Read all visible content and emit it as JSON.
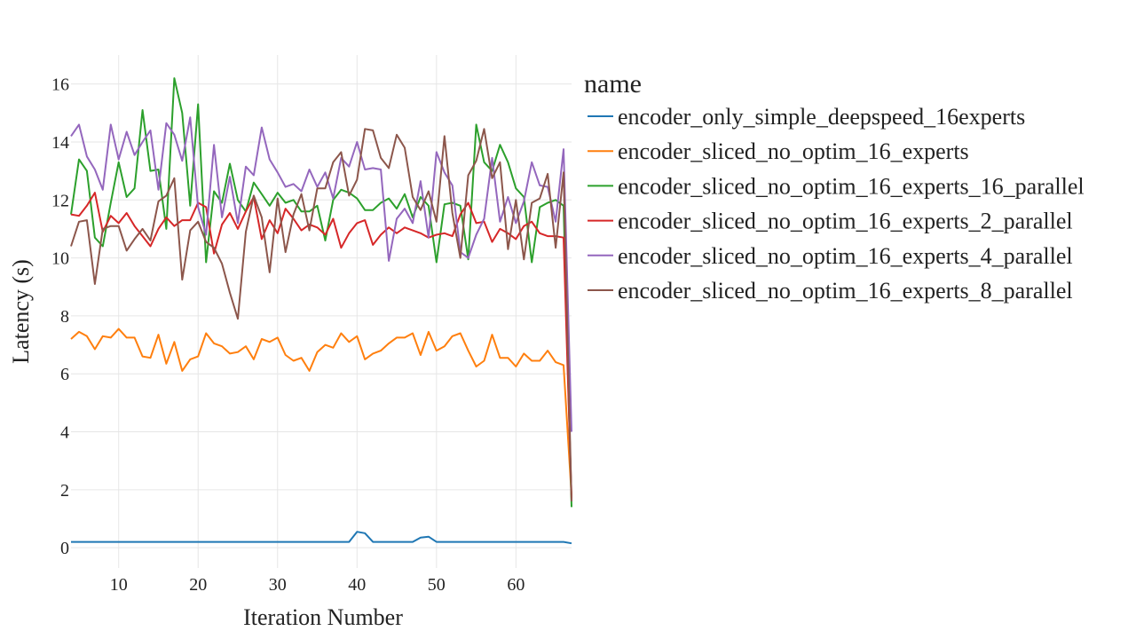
{
  "chart_data": {
    "type": "line",
    "xlabel": "Iteration Number",
    "ylabel": "Latency (s)",
    "xlim": [
      4,
      67
    ],
    "ylim": [
      -0.7,
      17.0
    ],
    "xticks": [
      10,
      20,
      30,
      40,
      50,
      60
    ],
    "yticks": [
      0,
      2,
      4,
      6,
      8,
      10,
      12,
      14,
      16
    ],
    "grid": true,
    "legend": {
      "title": "name",
      "placement": "right"
    },
    "x": [
      4,
      5,
      6,
      7,
      8,
      9,
      10,
      11,
      12,
      13,
      14,
      15,
      16,
      17,
      18,
      19,
      20,
      21,
      22,
      23,
      24,
      25,
      26,
      27,
      28,
      29,
      30,
      31,
      32,
      33,
      34,
      35,
      36,
      37,
      38,
      39,
      40,
      41,
      42,
      43,
      44,
      45,
      46,
      47,
      48,
      49,
      50,
      51,
      52,
      53,
      54,
      55,
      56,
      57,
      58,
      59,
      60,
      61,
      62,
      63,
      64,
      65,
      66,
      67
    ],
    "series": [
      {
        "name": "encoder_only_simple_deepspeed_16experts",
        "color": "#1f77b4",
        "values": [
          0.2,
          0.2,
          0.2,
          0.2,
          0.2,
          0.2,
          0.2,
          0.2,
          0.2,
          0.2,
          0.2,
          0.2,
          0.2,
          0.2,
          0.2,
          0.2,
          0.2,
          0.2,
          0.2,
          0.2,
          0.2,
          0.2,
          0.2,
          0.2,
          0.2,
          0.2,
          0.2,
          0.2,
          0.2,
          0.2,
          0.2,
          0.2,
          0.2,
          0.2,
          0.2,
          0.2,
          0.55,
          0.5,
          0.2,
          0.2,
          0.2,
          0.2,
          0.2,
          0.2,
          0.35,
          0.38,
          0.2,
          0.2,
          0.2,
          0.2,
          0.2,
          0.2,
          0.2,
          0.2,
          0.2,
          0.2,
          0.2,
          0.2,
          0.2,
          0.2,
          0.2,
          0.2,
          0.2,
          0.15
        ]
      },
      {
        "name": "encoder_sliced_no_optim_16_experts",
        "color": "#ff7f0e",
        "values": [
          7.2,
          7.45,
          7.3,
          6.85,
          7.3,
          7.25,
          7.55,
          7.25,
          7.25,
          6.6,
          6.55,
          7.35,
          6.35,
          7.1,
          6.1,
          6.5,
          6.6,
          7.4,
          7.05,
          6.95,
          6.7,
          6.75,
          6.95,
          6.5,
          7.2,
          7.1,
          7.25,
          6.65,
          6.45,
          6.55,
          6.1,
          6.75,
          7.0,
          6.9,
          7.4,
          7.1,
          7.3,
          6.5,
          6.7,
          6.8,
          7.05,
          7.25,
          7.25,
          7.4,
          6.65,
          7.45,
          6.8,
          6.95,
          7.3,
          7.4,
          6.8,
          6.25,
          6.45,
          7.35,
          6.55,
          6.55,
          6.25,
          6.7,
          6.45,
          6.45,
          6.8,
          6.4,
          6.3,
          1.8
        ]
      },
      {
        "name": "encoder_sliced_no_optim_16_experts_16_parallel",
        "color": "#2ca02c",
        "values": [
          11.5,
          13.4,
          13.0,
          10.7,
          10.4,
          11.9,
          13.3,
          12.1,
          12.4,
          15.1,
          13.0,
          13.05,
          11.0,
          16.2,
          15.0,
          11.8,
          15.3,
          9.85,
          12.3,
          11.9,
          13.25,
          12.0,
          11.6,
          12.6,
          12.2,
          11.8,
          12.25,
          11.9,
          12.0,
          11.6,
          11.6,
          11.8,
          10.6,
          12.0,
          12.35,
          12.25,
          12.05,
          11.65,
          11.65,
          11.9,
          12.05,
          11.7,
          12.2,
          11.4,
          12.1,
          11.8,
          9.85,
          11.85,
          11.9,
          11.8,
          9.95,
          14.6,
          13.3,
          13.0,
          13.9,
          13.3,
          12.4,
          12.1,
          9.85,
          11.75,
          11.9,
          12.0,
          11.8,
          1.4
        ]
      },
      {
        "name": "encoder_sliced_no_optim_16_experts_2_parallel",
        "color": "#d62728",
        "values": [
          11.5,
          11.45,
          11.8,
          12.25,
          10.9,
          11.45,
          11.2,
          11.55,
          11.1,
          10.75,
          10.4,
          11.0,
          11.4,
          11.1,
          11.3,
          11.3,
          11.9,
          11.75,
          10.15,
          11.15,
          11.55,
          11.0,
          11.6,
          12.1,
          10.65,
          11.3,
          10.85,
          11.7,
          11.35,
          10.95,
          11.15,
          11.05,
          10.8,
          11.35,
          10.35,
          10.85,
          11.2,
          11.3,
          10.45,
          10.8,
          11.05,
          10.85,
          11.05,
          10.95,
          10.85,
          10.7,
          10.8,
          10.85,
          10.75,
          11.5,
          11.9,
          11.2,
          11.25,
          10.55,
          11.0,
          10.85,
          10.65,
          11.1,
          11.25,
          10.85,
          10.75,
          10.75,
          10.7,
          1.7
        ]
      },
      {
        "name": "encoder_sliced_no_optim_16_experts_4_parallel",
        "color": "#9467bd",
        "values": [
          14.2,
          14.6,
          13.5,
          13.05,
          12.35,
          14.6,
          13.4,
          14.35,
          13.55,
          14.0,
          14.4,
          12.35,
          14.65,
          14.25,
          13.35,
          14.85,
          11.75,
          10.8,
          13.9,
          11.4,
          12.8,
          11.2,
          13.15,
          12.85,
          14.5,
          13.4,
          12.95,
          12.45,
          12.55,
          12.3,
          13.05,
          12.45,
          12.95,
          12.05,
          13.45,
          13.15,
          14.0,
          13.05,
          13.1,
          13.05,
          9.9,
          11.35,
          11.7,
          11.2,
          12.65,
          10.7,
          13.65,
          12.95,
          12.5,
          10.2,
          10.0,
          10.8,
          11.35,
          13.45,
          11.25,
          12.1,
          11.2,
          11.95,
          13.3,
          12.5,
          12.45,
          11.25,
          13.75,
          4.0
        ]
      },
      {
        "name": "encoder_sliced_no_optim_16_experts_8_parallel",
        "color": "#8c564b",
        "values": [
          10.4,
          11.25,
          11.3,
          9.1,
          11.0,
          11.1,
          11.1,
          10.25,
          10.65,
          11.0,
          10.6,
          11.95,
          12.15,
          12.75,
          9.25,
          10.95,
          11.25,
          10.55,
          10.35,
          9.8,
          8.8,
          7.9,
          10.9,
          12.15,
          11.4,
          9.5,
          12.05,
          10.2,
          11.5,
          12.2,
          10.95,
          12.4,
          12.4,
          13.3,
          13.65,
          12.15,
          12.7,
          14.45,
          14.4,
          13.45,
          13.1,
          14.25,
          13.8,
          12.1,
          11.65,
          12.3,
          11.25,
          14.2,
          11.55,
          10.0,
          12.85,
          13.35,
          14.45,
          12.75,
          13.3,
          10.3,
          12.0,
          9.95,
          11.9,
          12.05,
          12.9,
          10.35,
          12.95,
          1.6
        ]
      }
    ]
  }
}
